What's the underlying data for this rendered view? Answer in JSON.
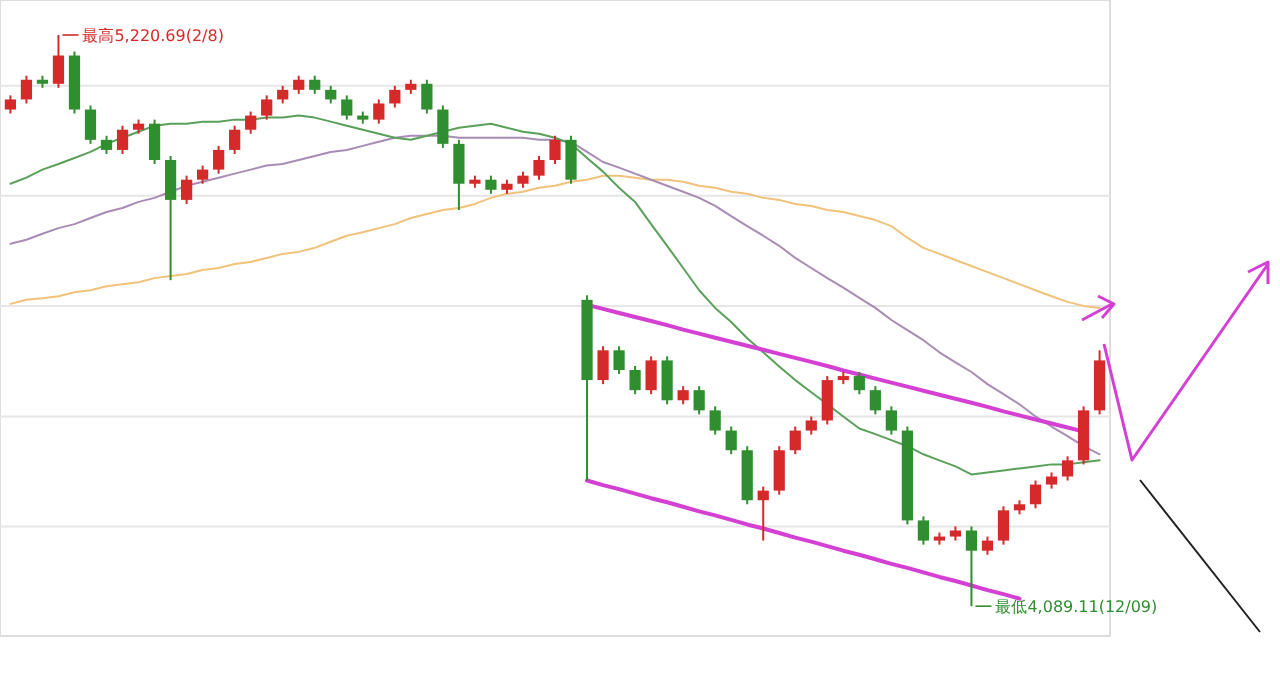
{
  "chart_data": {
    "type": "candlestick",
    "categories": [
      null,
      null,
      null,
      null,
      null,
      null,
      null,
      null,
      null,
      null,
      null,
      null,
      null,
      null,
      null,
      null,
      null,
      null,
      null,
      null,
      null,
      null,
      null,
      null,
      null,
      null,
      null,
      null,
      null,
      null,
      null,
      null,
      null,
      null,
      null,
      null,
      null,
      null,
      null,
      null,
      null,
      null,
      null,
      null,
      null,
      null,
      null,
      null,
      null,
      null,
      null,
      null,
      null,
      null,
      null,
      null,
      null,
      null,
      null,
      null,
      null,
      null,
      null,
      null,
      null,
      null,
      null,
      null,
      null
    ],
    "ohlc": [
      [
        5073,
        5101,
        5065,
        5093
      ],
      [
        5093,
        5140,
        5085,
        5132
      ],
      [
        5132,
        5140,
        5116,
        5124
      ],
      [
        5124,
        5220.69,
        5116,
        5180
      ],
      [
        5180,
        5188,
        5065,
        5073
      ],
      [
        5073,
        5081,
        5005,
        5013
      ],
      [
        5013,
        5021,
        4985,
        4993
      ],
      [
        4993,
        5041,
        4985,
        5033
      ],
      [
        5033,
        5053,
        5025,
        5045
      ],
      [
        5045,
        5053,
        4965,
        4973
      ],
      [
        4973,
        4981,
        4735,
        4894
      ],
      [
        4894,
        4942,
        4886,
        4934
      ],
      [
        4934,
        4962,
        4926,
        4954
      ],
      [
        4954,
        5001,
        4946,
        4993
      ],
      [
        4993,
        5041,
        4985,
        5033
      ],
      [
        5033,
        5069,
        5025,
        5061
      ],
      [
        5061,
        5101,
        5053,
        5093
      ],
      [
        5093,
        5120,
        5085,
        5112
      ],
      [
        5112,
        5140,
        5104,
        5132
      ],
      [
        5132,
        5140,
        5104,
        5112
      ],
      [
        5112,
        5120,
        5085,
        5093
      ],
      [
        5093,
        5101,
        5053,
        5061
      ],
      [
        5061,
        5069,
        5045,
        5053
      ],
      [
        5053,
        5093,
        5045,
        5085
      ],
      [
        5085,
        5120,
        5077,
        5112
      ],
      [
        5112,
        5132,
        5104,
        5124
      ],
      [
        5124,
        5132,
        5065,
        5073
      ],
      [
        5073,
        5081,
        4997,
        5005
      ],
      [
        5005,
        5013,
        4874,
        4926
      ],
      [
        4926,
        4942,
        4918,
        4934
      ],
      [
        4934,
        4942,
        4906,
        4914
      ],
      [
        4914,
        4934,
        4906,
        4926
      ],
      [
        4926,
        4950,
        4918,
        4942
      ],
      [
        4942,
        4981,
        4934,
        4973
      ],
      [
        4973,
        5021,
        4965,
        5013
      ],
      [
        5013,
        5021,
        4926,
        4934
      ],
      [
        4696,
        4705,
        4338,
        4537
      ],
      [
        4537,
        4604,
        4529,
        4596
      ],
      [
        4596,
        4604,
        4549,
        4557
      ],
      [
        4557,
        4565,
        4509,
        4517
      ],
      [
        4517,
        4584,
        4509,
        4576
      ],
      [
        4576,
        4584,
        4489,
        4497
      ],
      [
        4497,
        4525,
        4489,
        4517
      ],
      [
        4517,
        4525,
        4469,
        4477
      ],
      [
        4477,
        4485,
        4429,
        4437
      ],
      [
        4437,
        4445,
        4390,
        4398
      ],
      [
        4398,
        4406,
        4291,
        4299
      ],
      [
        4299,
        4326,
        4219,
        4318
      ],
      [
        4318,
        4406,
        4310,
        4398
      ],
      [
        4398,
        4445,
        4390,
        4437
      ],
      [
        4437,
        4465,
        4429,
        4457
      ],
      [
        4457,
        4545,
        4449,
        4537
      ],
      [
        4537,
        4553,
        4529,
        4545
      ],
      [
        4545,
        4553,
        4509,
        4517
      ],
      [
        4517,
        4525,
        4469,
        4477
      ],
      [
        4477,
        4485,
        4429,
        4437
      ],
      [
        4437,
        4445,
        4251,
        4259
      ],
      [
        4259,
        4267,
        4211,
        4219
      ],
      [
        4219,
        4235,
        4211,
        4227
      ],
      [
        4227,
        4247,
        4219,
        4239
      ],
      [
        4239,
        4247,
        4089.11,
        4199
      ],
      [
        4199,
        4227,
        4191,
        4219
      ],
      [
        4219,
        4287,
        4211,
        4279
      ],
      [
        4279,
        4299,
        4271,
        4291
      ],
      [
        4291,
        4338,
        4283,
        4330
      ],
      [
        4330,
        4354,
        4322,
        4346
      ],
      [
        4346,
        4386,
        4338,
        4378
      ],
      [
        4378,
        4485,
        4370,
        4477
      ],
      [
        4477,
        4596,
        4469,
        4576
      ]
    ],
    "colors": [
      "#d42a2a",
      "#d42a2a",
      "#2f8f2f",
      "#d42a2a",
      "#2f8f2f",
      "#2f8f2f",
      "#2f8f2f",
      "#d42a2a",
      "#d42a2a",
      "#2f8f2f",
      "#2f8f2f",
      "#d42a2a",
      "#d42a2a",
      "#d42a2a",
      "#d42a2a",
      "#d42a2a",
      "#d42a2a",
      "#d42a2a",
      "#d42a2a",
      "#2f8f2f",
      "#2f8f2f",
      "#2f8f2f",
      "#2f8f2f",
      "#d42a2a",
      "#d42a2a",
      "#d42a2a",
      "#2f8f2f",
      "#2f8f2f",
      "#2f8f2f",
      "#d42a2a",
      "#2f8f2f",
      "#d42a2a",
      "#d42a2a",
      "#d42a2a",
      "#d42a2a",
      "#2f8f2f",
      "#2f8f2f",
      "#d42a2a",
      "#2f8f2f",
      "#2f8f2f",
      "#d42a2a",
      "#2f8f2f",
      "#d42a2a",
      "#2f8f2f",
      "#2f8f2f",
      "#2f8f2f",
      "#2f8f2f",
      "#d42a2a",
      "#d42a2a",
      "#d42a2a",
      "#d42a2a",
      "#d42a2a",
      "#d42a2a",
      "#2f8f2f",
      "#2f8f2f",
      "#2f8f2f",
      "#2f8f2f",
      "#2f8f2f",
      "#d42a2a",
      "#d42a2a",
      "#2f8f2f",
      "#d42a2a",
      "#d42a2a",
      "#d42a2a",
      "#d42a2a",
      "#d42a2a",
      "#d42a2a",
      "#d42a2a",
      "#d42a2a"
    ],
    "series": [
      {
        "type": "line",
        "color": "#f0c27a",
        "values": [
          4688,
          4696,
          4699,
          4703,
          4711,
          4715,
          4723,
          4727,
          4731,
          4739,
          4743,
          4747,
          4755,
          4759,
          4767,
          4771,
          4779,
          4787,
          4791,
          4799,
          4811,
          4823,
          4830,
          4838,
          4846,
          4858,
          4866,
          4874,
          4878,
          4886,
          4898,
          4906,
          4910,
          4918,
          4922,
          4930,
          4934,
          4942,
          4942,
          4938,
          4934,
          4934,
          4930,
          4922,
          4918,
          4910,
          4906,
          4898,
          4894,
          4886,
          4882,
          4874,
          4870,
          4862,
          4854,
          4842,
          4819,
          4799,
          4787,
          4775,
          4763,
          4751,
          4739,
          4727,
          4715,
          4703,
          4692,
          4684,
          4680
        ]
      },
      {
        "type": "line",
        "color": "#a88cb4",
        "values": [
          4807,
          4815,
          4827,
          4838,
          4846,
          4858,
          4870,
          4878,
          4890,
          4898,
          4910,
          4922,
          4930,
          4938,
          4946,
          4954,
          4962,
          4965,
          4973,
          4981,
          4989,
          4993,
          5001,
          5009,
          5017,
          5021,
          5021,
          5021,
          5017,
          5017,
          5017,
          5017,
          5017,
          5013,
          5013,
          5009,
          4989,
          4969,
          4958,
          4946,
          4934,
          4922,
          4910,
          4898,
          4882,
          4862,
          4842,
          4823,
          4803,
          4779,
          4759,
          4739,
          4720,
          4700,
          4680,
          4656,
          4636,
          4616,
          4592,
          4572,
          4553,
          4529,
          4509,
          4489,
          4465,
          4445,
          4426,
          4406,
          4390
        ]
      },
      {
        "type": "line",
        "color": "#5aa05a",
        "values": [
          4926,
          4938,
          4954,
          4965,
          4977,
          4989,
          5005,
          5017,
          5029,
          5041,
          5045,
          5045,
          5049,
          5049,
          5053,
          5053,
          5057,
          5057,
          5061,
          5057,
          5049,
          5041,
          5033,
          5025,
          5017,
          5013,
          5021,
          5029,
          5037,
          5041,
          5045,
          5037,
          5029,
          5025,
          5017,
          5005,
          4977,
          4950,
          4918,
          4890,
          4846,
          4803,
          4759,
          4715,
          4680,
          4652,
          4620,
          4592,
          4564,
          4537,
          4513,
          4489,
          4465,
          4441,
          4430,
          4418,
          4406,
          4390,
          4378,
          4366,
          4350,
          4354,
          4358,
          4362,
          4366,
          4370,
          4370,
          4374,
          4378
        ]
      },
      {
        "type": "line",
        "color": "#d43fd4",
        "values": [
          null,
          null,
          null,
          null,
          null,
          null,
          null,
          null,
          null,
          null,
          null,
          null,
          null,
          null,
          null,
          null,
          null,
          null,
          null,
          null,
          null,
          null,
          null,
          null,
          null,
          null,
          null,
          null,
          null,
          null,
          null,
          null,
          null,
          null,
          null,
          null,
          4686,
          4678,
          4670,
          4662,
          4654,
          4646,
          4637,
          4629,
          4621,
          4613,
          4605,
          4597,
          4589,
          4581,
          4573,
          4565,
          4556,
          4548,
          4540,
          4532,
          4524,
          4516,
          4508,
          4500,
          4492,
          4484,
          4475,
          4467,
          4459,
          4451,
          4443,
          4435,
          null
        ]
      },
      {
        "type": "line",
        "color": "#d43fd4",
        "values": [
          null,
          null,
          null,
          null,
          null,
          null,
          null,
          null,
          null,
          null,
          null,
          null,
          null,
          null,
          null,
          null,
          null,
          null,
          null,
          null,
          null,
          null,
          null,
          null,
          null,
          null,
          null,
          null,
          null,
          null,
          null,
          null,
          null,
          null,
          null,
          null,
          4338,
          4329,
          4321,
          4312,
          4303,
          4295,
          4286,
          4277,
          4269,
          4260,
          4251,
          4243,
          4234,
          4225,
          4217,
          4208,
          4199,
          4191,
          4182,
          4173,
          4165,
          4156,
          4147,
          4139,
          4130,
          4121,
          4113,
          4104,
          null,
          null,
          null,
          null,
          null
        ]
      }
    ],
    "ylim": [
      4030,
      5290
    ],
    "yticks": [
      {
        "value": 5120,
        "label": null
      },
      {
        "value": 4902,
        "label": null
      },
      {
        "value": 4684,
        "label": null
      },
      {
        "value": 4465,
        "label": null
      },
      {
        "value": 4247,
        "label": null
      }
    ],
    "grid": "y",
    "annotations": [
      "最高5,220.69(2/8)",
      "最低4,089.11(12/09)"
    ]
  }
}
